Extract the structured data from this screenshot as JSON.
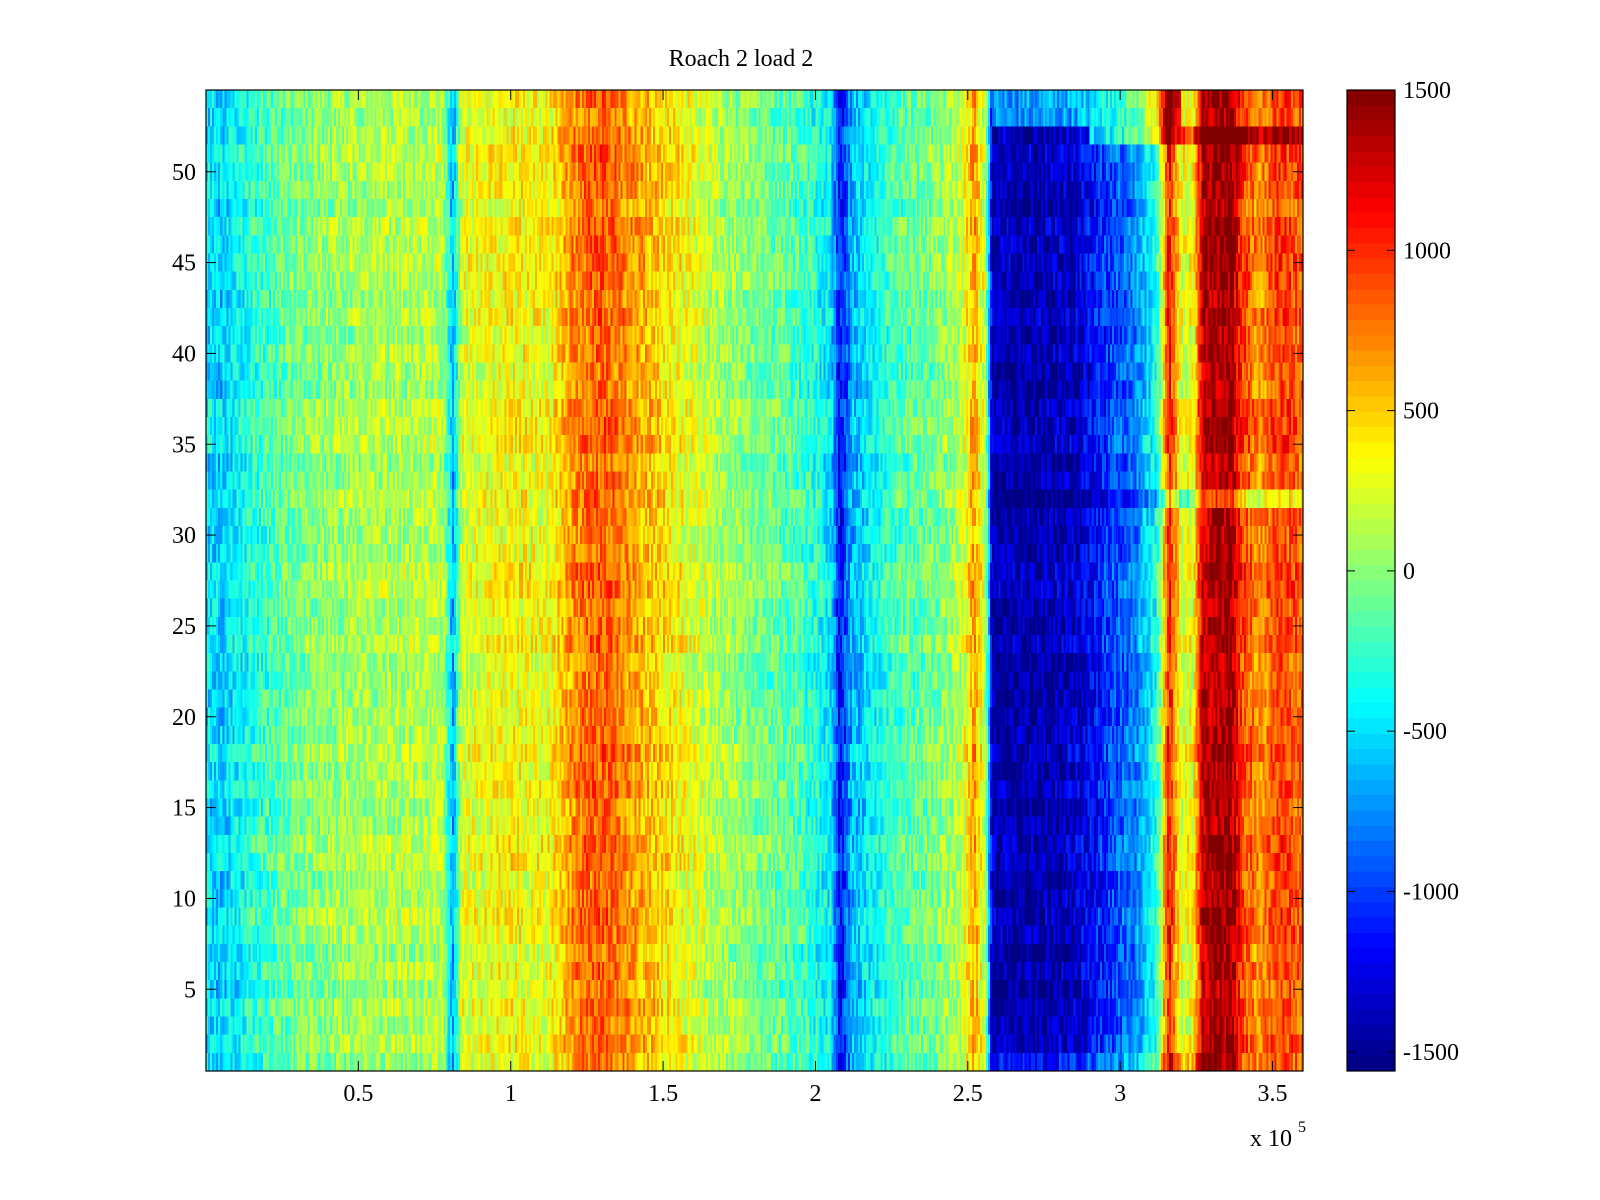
{
  "chart_data": {
    "type": "heatmap",
    "title": "Roach 2 load 2",
    "xlabel": "",
    "ylabel": "",
    "xlim": [
      0,
      360000
    ],
    "ylim": [
      0.5,
      54.5
    ],
    "x_exponent_label": "x 10",
    "x_exponent_power": "5",
    "x_ticks": [
      {
        "value": 50000,
        "label": "0.5"
      },
      {
        "value": 100000,
        "label": "1"
      },
      {
        "value": 150000,
        "label": "1.5"
      },
      {
        "value": 200000,
        "label": "2"
      },
      {
        "value": 250000,
        "label": "2.5"
      },
      {
        "value": 300000,
        "label": "3"
      },
      {
        "value": 350000,
        "label": "3.5"
      }
    ],
    "y_ticks": [
      {
        "value": 5,
        "label": "5"
      },
      {
        "value": 10,
        "label": "10"
      },
      {
        "value": 15,
        "label": "15"
      },
      {
        "value": 20,
        "label": "20"
      },
      {
        "value": 25,
        "label": "25"
      },
      {
        "value": 30,
        "label": "30"
      },
      {
        "value": 35,
        "label": "35"
      },
      {
        "value": 40,
        "label": "40"
      },
      {
        "value": 45,
        "label": "45"
      },
      {
        "value": 50,
        "label": "50"
      }
    ],
    "colormap": "jet",
    "colorbar": {
      "clim": [
        -1560,
        1500
      ],
      "ticks": [
        {
          "value": 1500,
          "label": "1500"
        },
        {
          "value": 1000,
          "label": "1000"
        },
        {
          "value": 500,
          "label": "500"
        },
        {
          "value": 0,
          "label": "0"
        },
        {
          "value": -500,
          "label": "-500"
        },
        {
          "value": -1000,
          "label": "-1000"
        },
        {
          "value": -1500,
          "label": "-1500"
        }
      ]
    },
    "rows": 54,
    "column_profile": [
      {
        "x": 0,
        "value": -450
      },
      {
        "x": 5000,
        "value": -550
      },
      {
        "x": 15000,
        "value": -300
      },
      {
        "x": 30000,
        "value": -50
      },
      {
        "x": 45000,
        "value": 50
      },
      {
        "x": 60000,
        "value": 100
      },
      {
        "x": 78000,
        "value": 120
      },
      {
        "x": 81000,
        "value": -700
      },
      {
        "x": 84000,
        "value": 250
      },
      {
        "x": 100000,
        "value": 350
      },
      {
        "x": 112000,
        "value": 300
      },
      {
        "x": 122000,
        "value": 750
      },
      {
        "x": 130000,
        "value": 850
      },
      {
        "x": 140000,
        "value": 650
      },
      {
        "x": 150000,
        "value": 450
      },
      {
        "x": 165000,
        "value": 150
      },
      {
        "x": 180000,
        "value": -50
      },
      {
        "x": 195000,
        "value": -200
      },
      {
        "x": 205000,
        "value": -450
      },
      {
        "x": 208000,
        "value": -1200
      },
      {
        "x": 212000,
        "value": -650
      },
      {
        "x": 225000,
        "value": -200
      },
      {
        "x": 240000,
        "value": -50
      },
      {
        "x": 248000,
        "value": 150
      },
      {
        "x": 252000,
        "value": 650
      },
      {
        "x": 256000,
        "value": 100
      },
      {
        "x": 258000,
        "value": -1400
      },
      {
        "x": 270000,
        "value": -1450
      },
      {
        "x": 285000,
        "value": -1350
      },
      {
        "x": 295000,
        "value": -1050
      },
      {
        "x": 305000,
        "value": -800
      },
      {
        "x": 312000,
        "value": -300
      },
      {
        "x": 316000,
        "value": 1100
      },
      {
        "x": 320000,
        "value": 250
      },
      {
        "x": 324000,
        "value": 300
      },
      {
        "x": 327000,
        "value": 1300
      },
      {
        "x": 336000,
        "value": 1450
      },
      {
        "x": 340000,
        "value": 950
      },
      {
        "x": 346000,
        "value": 650
      },
      {
        "x": 352000,
        "value": 950
      },
      {
        "x": 360000,
        "value": 800
      }
    ],
    "row_offsets": [
      {
        "row_start": 1,
        "row_end": 1,
        "x_from": 258000,
        "x_to": 330000,
        "delta": 300
      },
      {
        "row_start": 32,
        "row_end": 32,
        "x_from": 258000,
        "x_to": 310000,
        "delta": -250
      },
      {
        "row_start": 32,
        "row_end": 32,
        "x_from": 310000,
        "x_to": 360000,
        "delta": -500
      },
      {
        "row_start": 52,
        "row_end": 52,
        "x_from": 290000,
        "x_to": 360000,
        "delta": 600
      },
      {
        "row_start": 53,
        "row_end": 54,
        "x_from": 258000,
        "x_to": 320000,
        "delta": 700
      }
    ]
  }
}
